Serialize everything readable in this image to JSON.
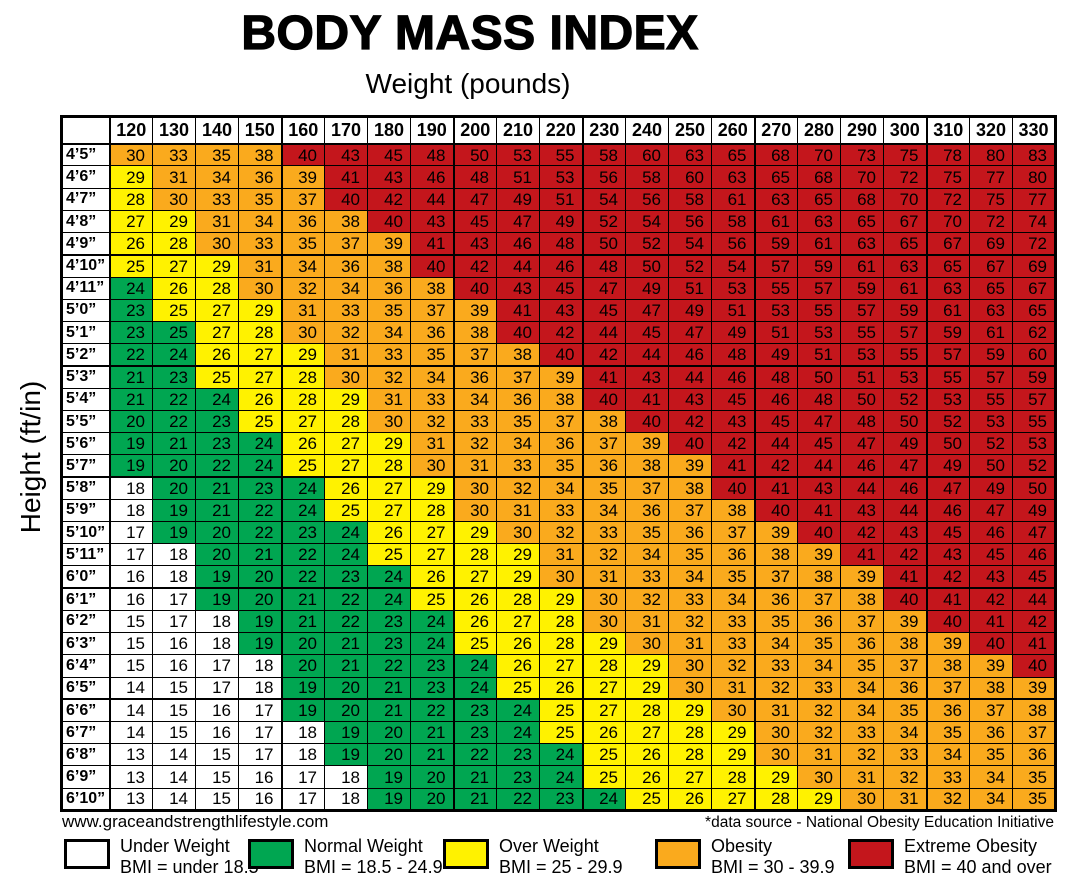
{
  "page": {
    "title": "BODY MASS INDEX",
    "subtitle": "Weight (pounds)",
    "y_axis_label": "Height (ft/in)",
    "footer": {
      "website": "www.graceandstrengthlifestyle.com",
      "source_note": "*data source - National Obesity Education Initiative"
    }
  },
  "legend": {
    "items": [
      {
        "label": "Under Weight",
        "range": "BMI = under 18.5",
        "color_key": "w"
      },
      {
        "label": "Normal Weight",
        "range": "BMI = 18.5 - 24.9",
        "color_key": "g"
      },
      {
        "label": "Over Weight",
        "range": "BMI = 25 - 29.9",
        "color_key": "y"
      },
      {
        "label": "Obesity",
        "range": "BMI = 30 - 39.9",
        "color_key": "o"
      },
      {
        "label": "Extreme Obesity",
        "range": "BMI = 40 and over",
        "color_key": "r"
      }
    ]
  },
  "chart_data": {
    "type": "heatmap",
    "title": "BODY MASS INDEX",
    "xlabel": "Weight (pounds)",
    "ylabel": "Height (ft/in)",
    "weights_lb": [
      120,
      130,
      140,
      150,
      160,
      170,
      180,
      190,
      200,
      210,
      220,
      230,
      240,
      250,
      260,
      270,
      280,
      290,
      300,
      310,
      320,
      330
    ],
    "heights_ftin": [
      "4’5”",
      "4’6”",
      "4’7”",
      "4’8”",
      "4’9”",
      "4’10”",
      "4’11”",
      "5’0”",
      "5’1”",
      "5’2”",
      "5’3”",
      "5’4”",
      "5’5”",
      "5’6”",
      "5’7”",
      "5’8”",
      "5’9”",
      "5’10”",
      "5’11”",
      "6’0”",
      "6’1”",
      "6’2”",
      "6’3”",
      "6’4”",
      "6’5”",
      "6’6”",
      "6’7”",
      "6’8”",
      "6’9”",
      "6’10”"
    ],
    "bmi_values": [
      [
        30,
        33,
        35,
        38,
        40,
        43,
        45,
        48,
        50,
        53,
        55,
        58,
        60,
        63,
        65,
        68,
        70,
        73,
        75,
        78,
        80,
        83
      ],
      [
        29,
        31,
        34,
        36,
        39,
        41,
        43,
        46,
        48,
        51,
        53,
        56,
        58,
        60,
        63,
        65,
        68,
        70,
        72,
        75,
        77,
        80
      ],
      [
        28,
        30,
        33,
        35,
        37,
        40,
        42,
        44,
        47,
        49,
        51,
        54,
        56,
        58,
        61,
        63,
        65,
        68,
        70,
        72,
        75,
        77
      ],
      [
        27,
        29,
        31,
        34,
        36,
        38,
        40,
        43,
        45,
        47,
        49,
        52,
        54,
        56,
        58,
        61,
        63,
        65,
        67,
        70,
        72,
        74
      ],
      [
        26,
        28,
        30,
        33,
        35,
        37,
        39,
        41,
        43,
        46,
        48,
        50,
        52,
        54,
        56,
        59,
        61,
        63,
        65,
        67,
        69,
        72
      ],
      [
        25,
        27,
        29,
        31,
        34,
        36,
        38,
        40,
        42,
        44,
        46,
        48,
        50,
        52,
        54,
        57,
        59,
        61,
        63,
        65,
        67,
        69
      ],
      [
        24,
        26,
        28,
        30,
        32,
        34,
        36,
        38,
        40,
        43,
        45,
        47,
        49,
        51,
        53,
        55,
        57,
        59,
        61,
        63,
        65,
        67
      ],
      [
        23,
        25,
        27,
        29,
        31,
        33,
        35,
        37,
        39,
        41,
        43,
        45,
        47,
        49,
        51,
        53,
        55,
        57,
        59,
        61,
        63,
        65
      ],
      [
        23,
        25,
        27,
        28,
        30,
        32,
        34,
        36,
        38,
        40,
        42,
        44,
        45,
        47,
        49,
        51,
        53,
        55,
        57,
        59,
        61,
        62
      ],
      [
        22,
        24,
        26,
        27,
        29,
        31,
        33,
        35,
        37,
        38,
        40,
        42,
        44,
        46,
        48,
        49,
        51,
        53,
        55,
        57,
        59,
        60
      ],
      [
        21,
        23,
        25,
        27,
        28,
        30,
        32,
        34,
        36,
        37,
        39,
        41,
        43,
        44,
        46,
        48,
        50,
        51,
        53,
        55,
        57,
        59
      ],
      [
        21,
        22,
        24,
        26,
        28,
        29,
        31,
        33,
        34,
        36,
        38,
        40,
        41,
        43,
        45,
        46,
        48,
        50,
        52,
        53,
        55,
        57
      ],
      [
        20,
        22,
        23,
        25,
        27,
        28,
        30,
        32,
        33,
        35,
        37,
        38,
        40,
        42,
        43,
        45,
        47,
        48,
        50,
        52,
        53,
        55
      ],
      [
        19,
        21,
        23,
        24,
        26,
        27,
        29,
        31,
        32,
        34,
        36,
        37,
        39,
        40,
        42,
        44,
        45,
        47,
        49,
        50,
        52,
        53
      ],
      [
        19,
        20,
        22,
        24,
        25,
        27,
        28,
        30,
        31,
        33,
        35,
        36,
        38,
        39,
        41,
        42,
        44,
        46,
        47,
        49,
        50,
        52
      ],
      [
        18,
        20,
        21,
        23,
        24,
        26,
        27,
        29,
        30,
        32,
        34,
        35,
        37,
        38,
        40,
        41,
        43,
        44,
        46,
        47,
        49,
        50
      ],
      [
        18,
        19,
        21,
        22,
        24,
        25,
        27,
        28,
        30,
        31,
        33,
        34,
        36,
        37,
        38,
        40,
        41,
        43,
        44,
        46,
        47,
        49
      ],
      [
        17,
        19,
        20,
        22,
        23,
        24,
        26,
        27,
        29,
        30,
        32,
        33,
        35,
        36,
        37,
        39,
        40,
        42,
        43,
        45,
        46,
        47
      ],
      [
        17,
        18,
        20,
        21,
        22,
        24,
        25,
        27,
        28,
        29,
        31,
        32,
        34,
        35,
        36,
        38,
        39,
        41,
        42,
        43,
        45,
        46
      ],
      [
        16,
        18,
        19,
        20,
        22,
        23,
        24,
        26,
        27,
        29,
        30,
        31,
        33,
        34,
        35,
        37,
        38,
        39,
        41,
        42,
        43,
        45
      ],
      [
        16,
        17,
        19,
        20,
        21,
        22,
        24,
        25,
        26,
        28,
        29,
        30,
        32,
        33,
        34,
        36,
        37,
        38,
        40,
        41,
        42,
        44
      ],
      [
        15,
        17,
        18,
        19,
        21,
        22,
        23,
        24,
        26,
        27,
        28,
        30,
        31,
        32,
        33,
        35,
        36,
        37,
        39,
        40,
        41,
        42
      ],
      [
        15,
        16,
        18,
        19,
        20,
        21,
        23,
        24,
        25,
        26,
        28,
        29,
        30,
        31,
        33,
        34,
        35,
        36,
        38,
        39,
        40,
        41
      ],
      [
        15,
        16,
        17,
        18,
        20,
        21,
        22,
        23,
        24,
        26,
        27,
        28,
        29,
        30,
        32,
        33,
        34,
        35,
        37,
        38,
        39,
        40
      ],
      [
        14,
        15,
        17,
        18,
        19,
        20,
        21,
        23,
        24,
        25,
        26,
        27,
        29,
        30,
        31,
        32,
        33,
        34,
        36,
        37,
        38,
        39
      ],
      [
        14,
        15,
        16,
        17,
        19,
        20,
        21,
        22,
        23,
        24,
        25,
        27,
        28,
        29,
        30,
        31,
        32,
        34,
        35,
        36,
        37,
        38
      ],
      [
        14,
        15,
        16,
        17,
        18,
        19,
        20,
        21,
        23,
        24,
        25,
        26,
        27,
        28,
        29,
        30,
        32,
        33,
        34,
        35,
        36,
        37
      ],
      [
        13,
        14,
        15,
        17,
        18,
        19,
        20,
        21,
        22,
        23,
        24,
        25,
        26,
        28,
        29,
        30,
        31,
        32,
        33,
        34,
        35,
        36
      ],
      [
        13,
        14,
        15,
        16,
        17,
        18,
        19,
        20,
        21,
        23,
        24,
        25,
        26,
        27,
        28,
        29,
        30,
        31,
        32,
        33,
        34,
        35
      ],
      [
        13,
        14,
        15,
        16,
        17,
        18,
        19,
        20,
        21,
        22,
        23,
        24,
        25,
        26,
        27,
        28,
        29,
        30,
        31,
        32,
        34,
        35
      ]
    ],
    "cell_categories": [
      "oooorrrrrrrrrrrrrrrrrr",
      "yoooorrrrrrrrrrrrrrrrr",
      "yoooorrrrrrrrrrrrrrrrr",
      "yyoooorrrrrrrrrrrrrrrr",
      "yyooooorrrrrrrrrrrrrrr",
      "yyyoooorrrrrrrrrrrrrrr",
      "gyyooooorrrrrrrrrrrrrr",
      "gyyyooooorrrrrrrrrrrrr",
      "ggyyooooorrrrrrrrrrrrr",
      "ggyyyooooorrrrrrrrrrrr",
      "ggyyyoooooorrrrrrrrrrr",
      "gggyyyooooorrrrrrrrrrr",
      "gggyyyoooooorrrrrrrrrr",
      "ggggyyyoooooorrrrrrrrr",
      "ggggyyyooooooorrrrrrrr",
      "wggggyyyoooooorrrrrrrr",
      "wggggyyyooooooorrrrrrr",
      "wgggggyyyooooooorrrrrr",
      "wwggggyyyyooooooorrrrr",
      "wwgggggyyyoooooooorrrr",
      "wwgggggyyyyooooooorrrr",
      "wwwgggggyyyoooooooorrr",
      "wwwgggggyyyyoooooooorr",
      "wwwwgggggyyyyoooooooor",
      "wwwwgggggyyyyooooooooo",
      "wwwwggggggyyyyoooooooo",
      "wwwwwgggggyyyyyooooooo",
      "wwwwwggggggyyyyooooooo",
      "wwwwwwgggggyyyyyoooooo",
      "wwwwwwggggggyyyyyooooo"
    ],
    "palette": {
      "w": "#FFFFFF",
      "g": "#00A651",
      "y": "#FFF200",
      "o": "#FAAA1D",
      "r": "#C4161C"
    },
    "category_names": {
      "w": "Under Weight",
      "g": "Normal Weight",
      "y": "Over Weight",
      "o": "Obesity",
      "r": "Extreme Obesity"
    },
    "grid": "on",
    "legend_position": "bottom"
  }
}
